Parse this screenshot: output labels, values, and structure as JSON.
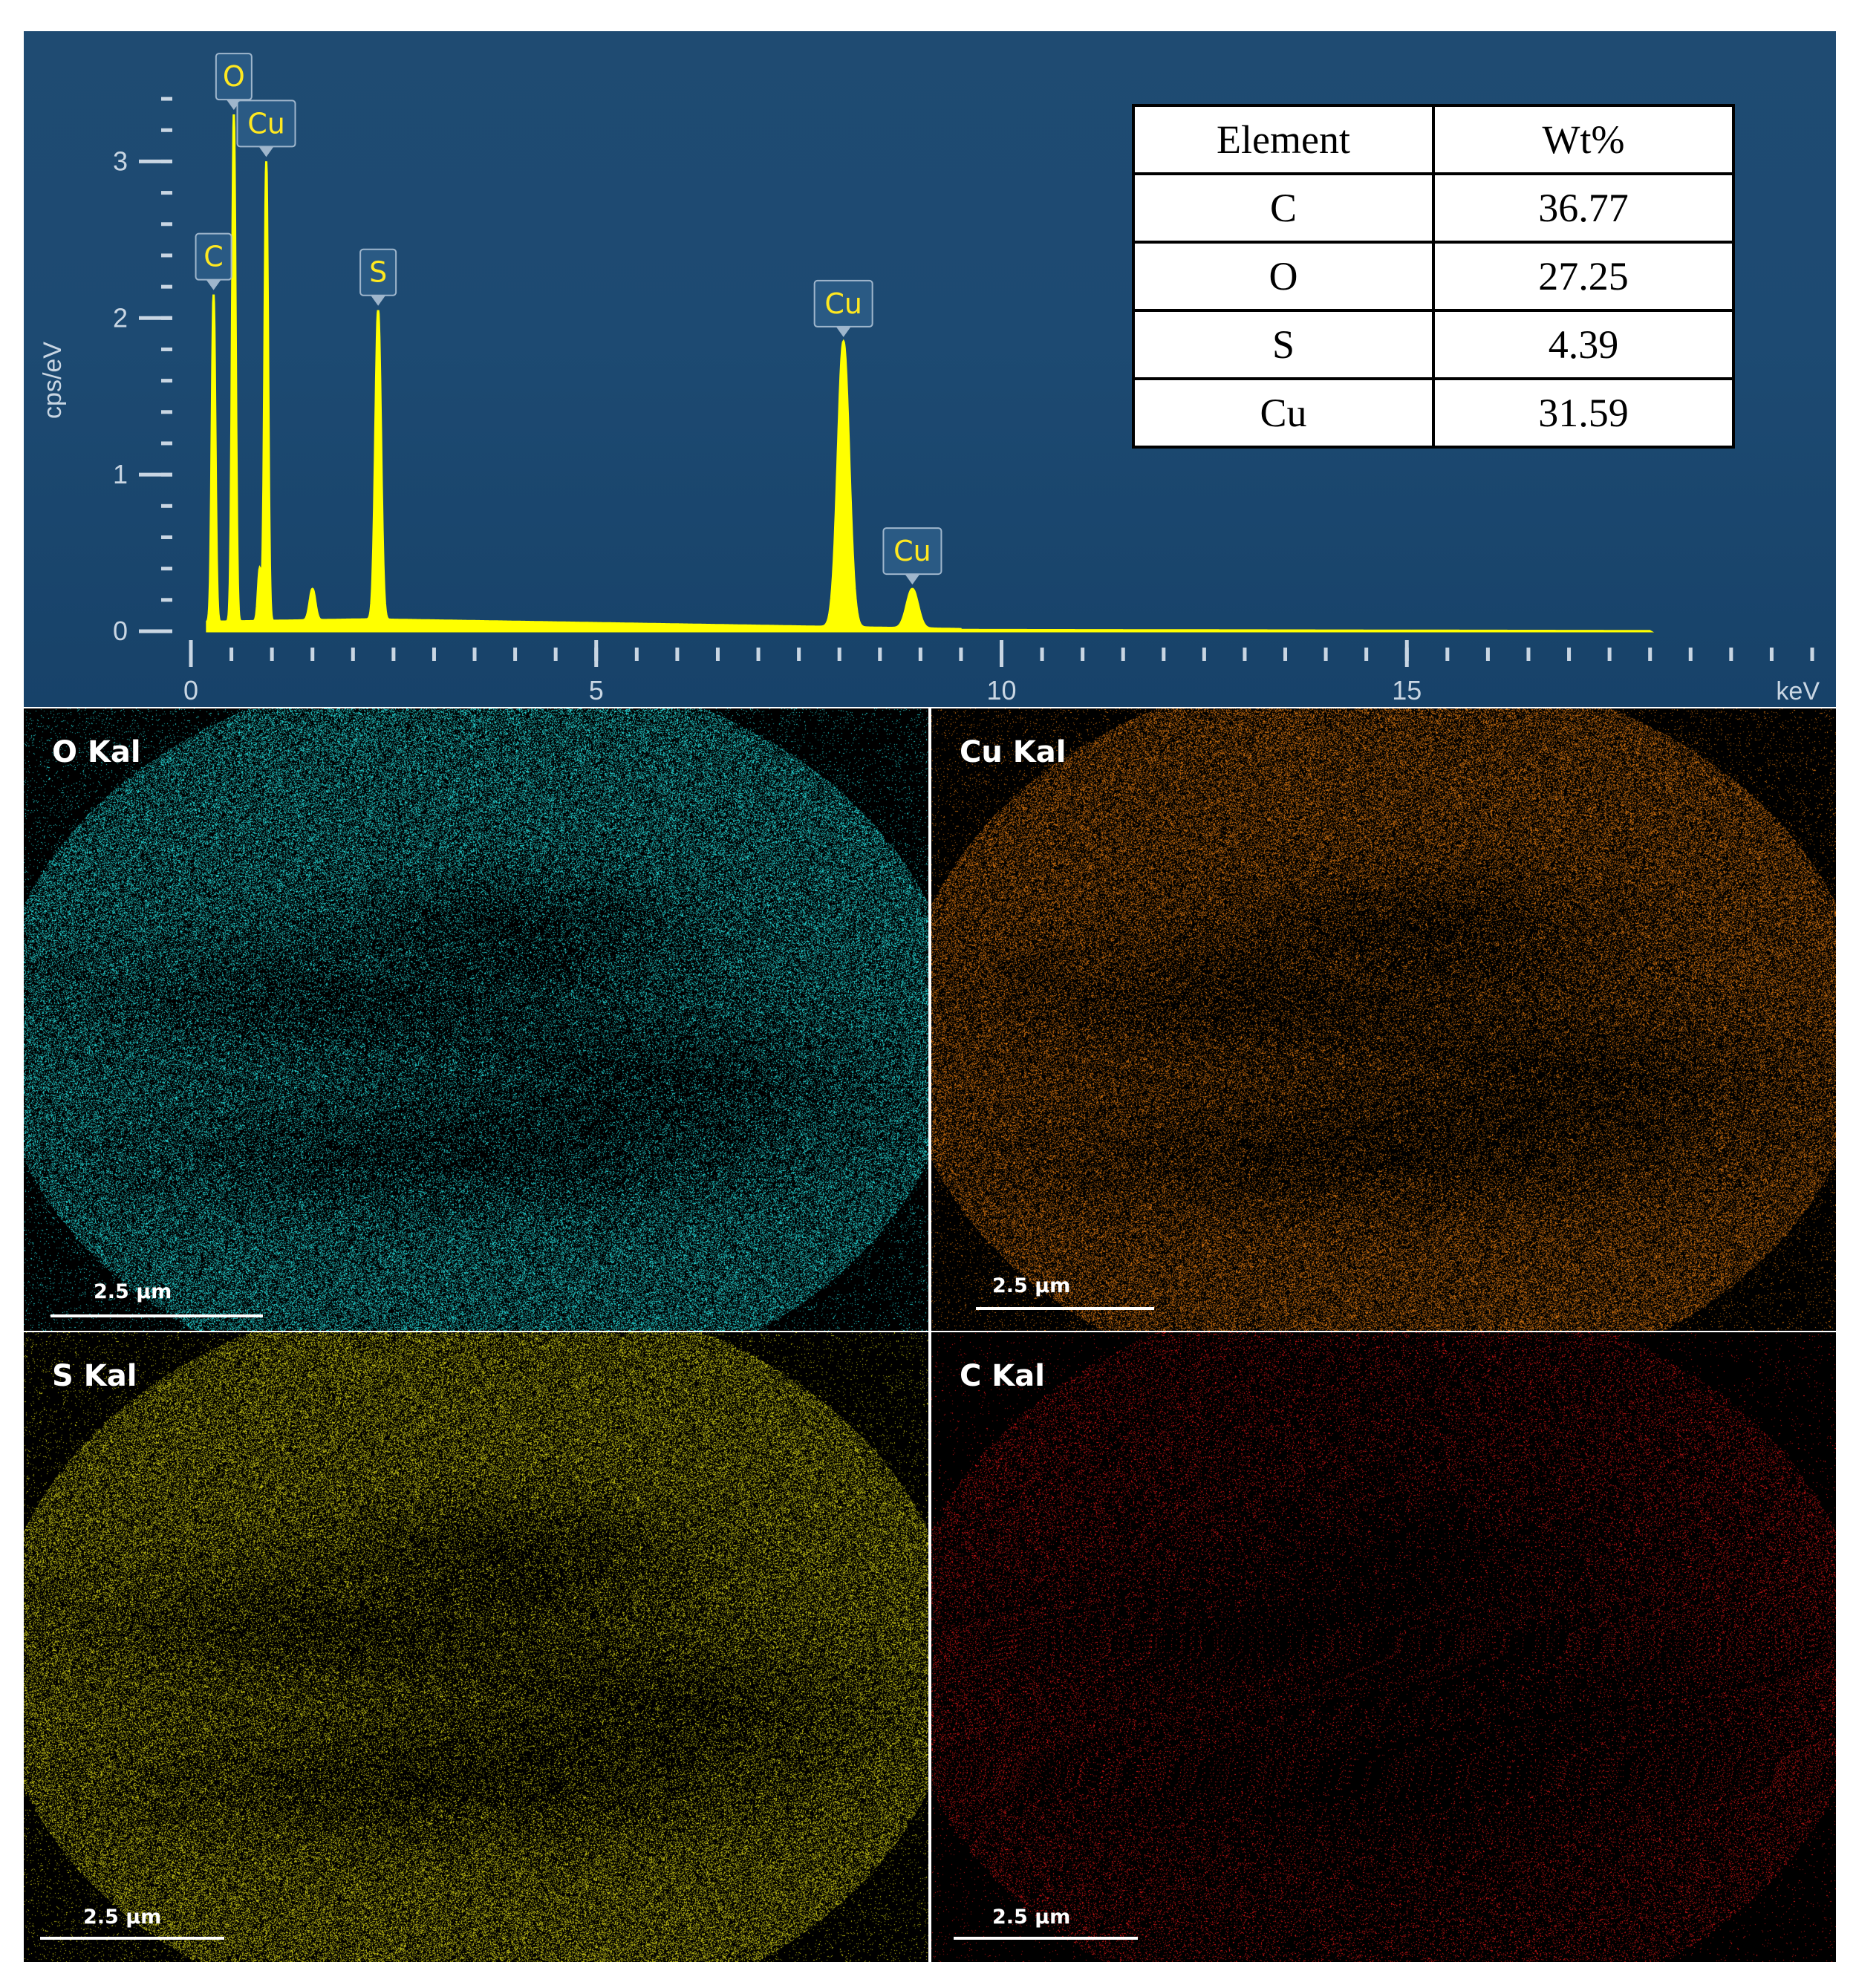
{
  "chart_data": {
    "type": "line",
    "xlabel": "keV",
    "ylabel": "cps/eV",
    "xlim": [
      0,
      20
    ],
    "ylim": [
      0,
      3.5
    ],
    "x_ticks": [
      0,
      5,
      10,
      15
    ],
    "y_ticks": [
      0,
      1,
      2,
      3
    ],
    "line_color": "#ffff00",
    "background": "#1f4b72",
    "peaks": [
      {
        "label": "C",
        "energy": 0.28,
        "height": 2.15
      },
      {
        "label": "O",
        "energy": 0.53,
        "height": 3.3
      },
      {
        "label": "Cu",
        "energy": 0.93,
        "height": 3.0
      },
      {
        "label": "S",
        "energy": 2.31,
        "height": 2.05
      },
      {
        "label": "Cu",
        "energy": 8.05,
        "height": 1.85
      },
      {
        "label": "Cu",
        "energy": 8.9,
        "height": 0.27
      }
    ],
    "minor_peaks": [
      {
        "energy": 0.85,
        "height": 0.4
      },
      {
        "energy": 1.5,
        "height": 0.27
      }
    ]
  },
  "table": {
    "headers": [
      "Element",
      "Wt%"
    ],
    "rows": [
      [
        "C",
        "36.77"
      ],
      [
        "O",
        "27.25"
      ],
      [
        "S",
        "4.39"
      ],
      [
        "Cu",
        "31.59"
      ]
    ]
  },
  "maps": [
    {
      "label": "O Kal",
      "scale": "2.5 µm",
      "color": "#29e6e6"
    },
    {
      "label": "Cu Kal",
      "scale": "2.5 µm",
      "color": "#e07a12"
    },
    {
      "label": "S Kal",
      "scale": "2.5 µm",
      "color": "#d9d61a"
    },
    {
      "label": "C Kal",
      "scale": "2.5 µm",
      "color": "#ee1a1a"
    }
  ]
}
